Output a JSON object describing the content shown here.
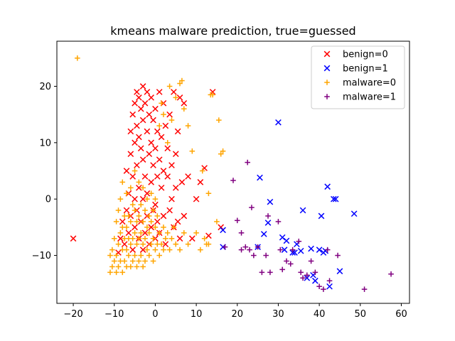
{
  "chart_data": {
    "type": "scatter",
    "title": "kmeans malware prediction, true=guessed",
    "xlabel": "",
    "ylabel": "",
    "xlim": [
      -24.0,
      62.0
    ],
    "ylim": [
      -18.5,
      28.0
    ],
    "xticks": [
      -20,
      -10,
      0,
      10,
      20,
      30,
      40,
      50,
      60
    ],
    "yticks": [
      -10,
      0,
      10,
      20
    ],
    "grid": false,
    "legend_position": "top-right",
    "series": [
      {
        "name": "benign=0",
        "marker": "x",
        "color": "#ff0000",
        "points": [
          [
            -20,
            -7
          ],
          [
            -9,
            -9.5
          ],
          [
            -8.5,
            -7
          ],
          [
            -8,
            -4
          ],
          [
            -7.5,
            -8
          ],
          [
            -7,
            -2
          ],
          [
            -7,
            5
          ],
          [
            -6.5,
            1
          ],
          [
            -6.5,
            -6
          ],
          [
            -6,
            8
          ],
          [
            -6,
            12
          ],
          [
            -6,
            -3
          ],
          [
            -5.5,
            15
          ],
          [
            -5.5,
            4
          ],
          [
            -5.5,
            -9
          ],
          [
            -5,
            17
          ],
          [
            -5,
            10
          ],
          [
            -5,
            0
          ],
          [
            -5,
            -5
          ],
          [
            -4.5,
            19
          ],
          [
            -4.5,
            13
          ],
          [
            -4.5,
            6
          ],
          [
            -4.5,
            -2
          ],
          [
            -4,
            18
          ],
          [
            -4,
            11
          ],
          [
            -4,
            2
          ],
          [
            -4,
            -7
          ],
          [
            -3.5,
            16
          ],
          [
            -3.5,
            9
          ],
          [
            -3.5,
            -4
          ],
          [
            -3,
            20
          ],
          [
            -3,
            14
          ],
          [
            -3,
            7
          ],
          [
            -3,
            0
          ],
          [
            -3,
            -9
          ],
          [
            -2.5,
            17
          ],
          [
            -2.5,
            4
          ],
          [
            -2.5,
            -6
          ],
          [
            -2,
            19
          ],
          [
            -2,
            12
          ],
          [
            -2,
            1
          ],
          [
            -2,
            -3
          ],
          [
            -1.5,
            15
          ],
          [
            -1.5,
            8
          ],
          [
            -1.5,
            -8
          ],
          [
            -1,
            18
          ],
          [
            -1,
            10
          ],
          [
            -1,
            3
          ],
          [
            -1,
            -5
          ],
          [
            -0.5,
            14
          ],
          [
            -0.5,
            6
          ],
          [
            -0.5,
            -2
          ],
          [
            0,
            16
          ],
          [
            0,
            9
          ],
          [
            0,
            -1
          ],
          [
            0,
            -7
          ],
          [
            0.5,
            12
          ],
          [
            0.5,
            4
          ],
          [
            0.5,
            -4
          ],
          [
            1,
            19
          ],
          [
            1,
            7
          ],
          [
            1,
            -6
          ],
          [
            1.5,
            11
          ],
          [
            1.5,
            2
          ],
          [
            2,
            17
          ],
          [
            2,
            5
          ],
          [
            2,
            -3
          ],
          [
            2.5,
            13
          ],
          [
            2.5,
            -8
          ],
          [
            3,
            9
          ],
          [
            3,
            4
          ],
          [
            3.5,
            15
          ],
          [
            3.5,
            -2
          ],
          [
            4,
            6
          ],
          [
            4,
            0
          ],
          [
            4.5,
            19
          ],
          [
            4.5,
            -5
          ],
          [
            5,
            8
          ],
          [
            5,
            2
          ],
          [
            5.5,
            12
          ],
          [
            5.5,
            -4
          ],
          [
            6,
            18
          ],
          [
            6,
            -7
          ],
          [
            6.5,
            3
          ],
          [
            7,
            -3
          ],
          [
            7,
            17
          ],
          [
            8,
            4
          ],
          [
            9,
            -7
          ],
          [
            10,
            0
          ],
          [
            11,
            3
          ],
          [
            12,
            5.5
          ],
          [
            13,
            -6.5
          ],
          [
            14,
            19
          ],
          [
            16,
            -5
          ]
        ]
      },
      {
        "name": "benign=1",
        "marker": "x",
        "color": "#0000ff",
        "points": [
          [
            16.5,
            -5.5
          ],
          [
            16.5,
            -8.5
          ],
          [
            25,
            -8.5
          ],
          [
            25.5,
            3.8
          ],
          [
            26.5,
            -6.2
          ],
          [
            27.5,
            -4.2
          ],
          [
            28,
            -0.5
          ],
          [
            30,
            13.6
          ],
          [
            31,
            -6.8
          ],
          [
            31.5,
            -9
          ],
          [
            32,
            -7.4
          ],
          [
            33.5,
            -9.5
          ],
          [
            34,
            -9.5
          ],
          [
            34.5,
            -8
          ],
          [
            35.5,
            -9.2
          ],
          [
            36,
            -2
          ],
          [
            37,
            -14
          ],
          [
            38,
            -8.8
          ],
          [
            38.5,
            -13.5
          ],
          [
            39,
            -14.5
          ],
          [
            40,
            -9
          ],
          [
            40.5,
            -3
          ],
          [
            41,
            -9.5
          ],
          [
            41.5,
            -9.2
          ],
          [
            42,
            2.2
          ],
          [
            42.5,
            -15.5
          ],
          [
            43.5,
            0
          ],
          [
            44,
            0
          ],
          [
            45,
            -12.8
          ],
          [
            48.5,
            -2.6
          ]
        ]
      },
      {
        "name": "malware=0",
        "marker": "+",
        "color": "#ffa500",
        "points": [
          [
            -19,
            25
          ],
          [
            -11,
            -13
          ],
          [
            -11,
            -10
          ],
          [
            -10.5,
            -12
          ],
          [
            -10.5,
            -9
          ],
          [
            -10,
            -11
          ],
          [
            -10,
            -7
          ],
          [
            -9.5,
            -13
          ],
          [
            -9.5,
            -10
          ],
          [
            -9.5,
            -4
          ],
          [
            -9,
            -12
          ],
          [
            -9,
            -8
          ],
          [
            -9,
            -2
          ],
          [
            -8.5,
            -11
          ],
          [
            -8.5,
            -6
          ],
          [
            -8.5,
            0
          ],
          [
            -8,
            -13
          ],
          [
            -8,
            -9
          ],
          [
            -8,
            -5
          ],
          [
            -8,
            3
          ],
          [
            -7.5,
            -11
          ],
          [
            -7.5,
            -7
          ],
          [
            -7.5,
            -3
          ],
          [
            -7,
            -12
          ],
          [
            -7,
            -9
          ],
          [
            -7,
            -5
          ],
          [
            -7,
            1
          ],
          [
            -6.5,
            -10
          ],
          [
            -6.5,
            -7
          ],
          [
            -6.5,
            -3
          ],
          [
            -6,
            -12
          ],
          [
            -6,
            -8
          ],
          [
            -6,
            -4
          ],
          [
            -6,
            2
          ],
          [
            -5.5,
            -11
          ],
          [
            -5.5,
            -7
          ],
          [
            -5.5,
            -1
          ],
          [
            -5,
            -10
          ],
          [
            -5,
            -6
          ],
          [
            -5,
            -2
          ],
          [
            -5,
            5
          ],
          [
            -4.5,
            -12
          ],
          [
            -4.5,
            -8
          ],
          [
            -4.5,
            -4
          ],
          [
            -4,
            -11
          ],
          [
            -4,
            -7
          ],
          [
            -4,
            -3
          ],
          [
            -4,
            3
          ],
          [
            -3.5,
            -10
          ],
          [
            -3.5,
            -6
          ],
          [
            -3.5,
            -1
          ],
          [
            -3,
            -12
          ],
          [
            -3,
            -8
          ],
          [
            -3,
            -4
          ],
          [
            -3,
            2
          ],
          [
            -2.5,
            -11
          ],
          [
            -2.5,
            -7
          ],
          [
            -2.5,
            -2
          ],
          [
            -2,
            -9
          ],
          [
            -2,
            -5
          ],
          [
            -2,
            0
          ],
          [
            -1.5,
            -10
          ],
          [
            -1.5,
            -6
          ],
          [
            -1.5,
            -3
          ],
          [
            -1,
            -8
          ],
          [
            -1,
            -4
          ],
          [
            -1,
            1
          ],
          [
            -0.5,
            -11
          ],
          [
            -0.5,
            -7
          ],
          [
            -0.5,
            -2
          ],
          [
            0,
            -9
          ],
          [
            0,
            -5
          ],
          [
            0,
            0
          ],
          [
            0.5,
            -8
          ],
          [
            0.5,
            -3
          ],
          [
            1,
            -10
          ],
          [
            1,
            -6
          ],
          [
            1,
            13
          ],
          [
            1.5,
            -8
          ],
          [
            1.5,
            17
          ],
          [
            2,
            -9
          ],
          [
            2,
            -5
          ],
          [
            2,
            15
          ],
          [
            2.5,
            -7
          ],
          [
            3,
            -6
          ],
          [
            3,
            10
          ],
          [
            3.5,
            -9
          ],
          [
            3.5,
            20
          ],
          [
            4,
            -7
          ],
          [
            4,
            14
          ],
          [
            4.5,
            -5
          ],
          [
            5,
            -8
          ],
          [
            5,
            18
          ],
          [
            6,
            -9
          ],
          [
            6,
            20.5
          ],
          [
            6.5,
            21
          ],
          [
            7,
            -6
          ],
          [
            7,
            16
          ],
          [
            8,
            -8
          ],
          [
            8,
            13
          ],
          [
            9,
            8.5
          ],
          [
            10,
            -6
          ],
          [
            11,
            -9
          ],
          [
            11.5,
            5
          ],
          [
            12,
            -7
          ],
          [
            13,
            -8
          ],
          [
            13,
            1
          ],
          [
            13.5,
            18.5
          ],
          [
            14,
            18.5
          ],
          [
            15,
            -4
          ],
          [
            15.5,
            14
          ],
          [
            16,
            8
          ],
          [
            16.5,
            8.5
          ],
          [
            12.5,
            -8
          ]
        ]
      },
      {
        "name": "malware=1",
        "marker": "+",
        "color": "#800080",
        "points": [
          [
            17,
            -8.5
          ],
          [
            19,
            3.3
          ],
          [
            20,
            -3.8
          ],
          [
            21,
            -6
          ],
          [
            21,
            -9
          ],
          [
            22,
            -8.5
          ],
          [
            22.5,
            6.5
          ],
          [
            23,
            -9
          ],
          [
            23.5,
            -1.5
          ],
          [
            24,
            -10
          ],
          [
            25,
            -8.5
          ],
          [
            26,
            -13
          ],
          [
            27,
            -10
          ],
          [
            27.5,
            -3
          ],
          [
            28,
            -13
          ],
          [
            30,
            -4
          ],
          [
            30.5,
            -9
          ],
          [
            31,
            -12.5
          ],
          [
            32,
            -11
          ],
          [
            33,
            -11.5
          ],
          [
            33.5,
            -9
          ],
          [
            35,
            -7.5
          ],
          [
            35.5,
            -13
          ],
          [
            36,
            -14
          ],
          [
            37,
            -13.5
          ],
          [
            38,
            -11
          ],
          [
            39,
            -13
          ],
          [
            40,
            -15.5
          ],
          [
            41,
            -16
          ],
          [
            42,
            -9
          ],
          [
            42.5,
            -14.5
          ],
          [
            44.5,
            -10
          ],
          [
            51,
            -16
          ],
          [
            57.5,
            -13.3
          ]
        ]
      }
    ]
  }
}
